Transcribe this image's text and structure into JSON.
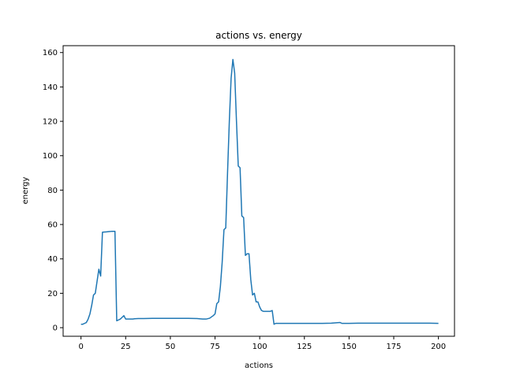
{
  "chart_data": {
    "type": "line",
    "title": "actions vs. energy",
    "xlabel": "actions",
    "ylabel": "energy",
    "xlim": [
      -10,
      209
    ],
    "ylim": [
      -5,
      164
    ],
    "x_ticks": [
      0,
      25,
      50,
      75,
      100,
      125,
      150,
      175,
      200
    ],
    "y_ticks": [
      0,
      20,
      40,
      60,
      80,
      100,
      120,
      140,
      160
    ],
    "grid": false,
    "series": [
      {
        "color": "#1f77b4",
        "x": [
          0,
          1,
          2,
          3,
          4,
          5,
          6,
          7,
          8,
          9,
          10,
          11,
          12,
          13,
          14,
          15,
          16,
          17,
          18,
          19,
          20,
          21,
          22,
          23,
          24,
          25,
          26,
          27,
          28,
          29,
          30,
          32,
          35,
          40,
          45,
          50,
          55,
          60,
          65,
          68,
          70,
          72,
          74,
          75,
          76,
          77,
          78,
          79,
          80,
          81,
          82,
          83,
          84,
          85,
          86,
          87,
          88,
          89,
          90,
          91,
          92,
          93,
          94,
          95,
          96,
          97,
          98,
          99,
          100,
          101,
          102,
          103,
          104,
          105,
          106,
          107,
          108,
          109,
          110,
          115,
          120,
          125,
          130,
          135,
          140,
          145,
          146,
          150,
          155,
          160,
          165,
          170,
          175,
          180,
          185,
          190,
          195,
          200
        ],
        "y": [
          2,
          2,
          2.5,
          3,
          5,
          8,
          13,
          19,
          20,
          27,
          34,
          30,
          55.5,
          55.6,
          55.7,
          55.8,
          55.9,
          56,
          56,
          56,
          4,
          4.5,
          5,
          6,
          7,
          5,
          5,
          5,
          5,
          5,
          5.2,
          5.3,
          5.3,
          5.4,
          5.4,
          5.4,
          5.4,
          5.4,
          5.3,
          5,
          5,
          5.5,
          7,
          8,
          14,
          15,
          24,
          38,
          57,
          58,
          90,
          120,
          145,
          156,
          148,
          120,
          94,
          93,
          65,
          64,
          42,
          43,
          43,
          28,
          19,
          20,
          15,
          15,
          12,
          10,
          9.5,
          9.5,
          9.5,
          9.5,
          9.5,
          10,
          2,
          2.5,
          2.5,
          2.5,
          2.5,
          2.5,
          2.5,
          2.5,
          2.6,
          3,
          2.5,
          2.5,
          2.6,
          2.6,
          2.6,
          2.6,
          2.6,
          2.6,
          2.6,
          2.6,
          2.6,
          2.5
        ]
      }
    ]
  }
}
